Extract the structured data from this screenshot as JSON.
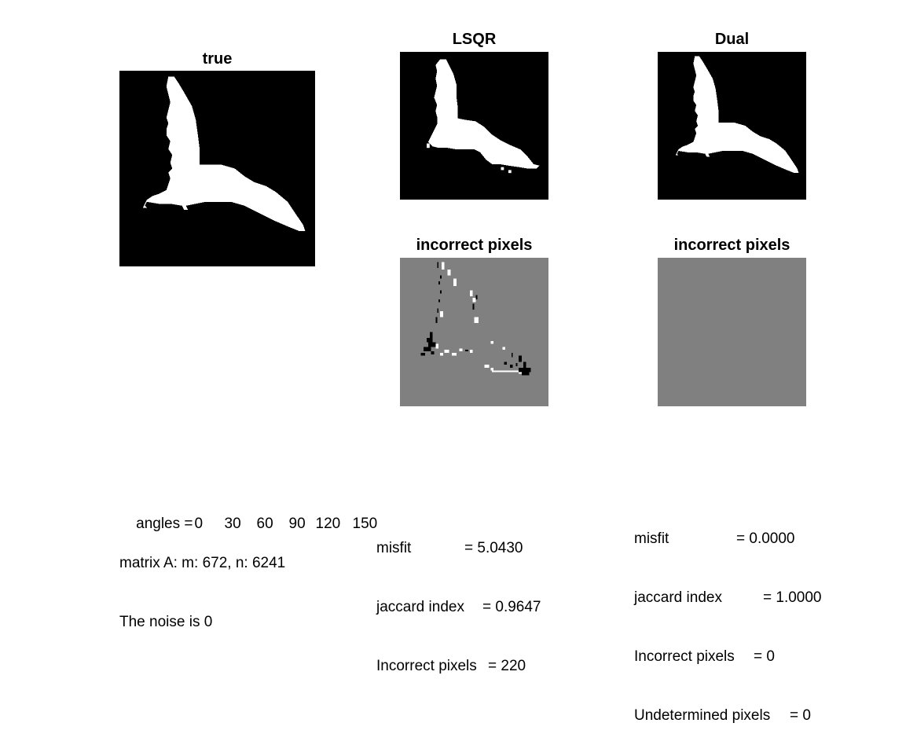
{
  "colors": {
    "background": "#000000",
    "shape": "#ffffff",
    "neutral": "#808080"
  },
  "panels": {
    "true": {
      "title": "true"
    },
    "lsqr": {
      "title": "LSQR"
    },
    "dual": {
      "title": "Dual"
    },
    "lsqr_diff": {
      "title": "incorrect pixels"
    },
    "dual_diff": {
      "title": "incorrect pixels"
    }
  },
  "info": {
    "angles_label": "angles =",
    "angles": [
      "0",
      "30",
      "60",
      "90",
      "120",
      "150"
    ],
    "matrix": "matrix A: m: 672, n: 6241",
    "noise": "The noise is 0"
  },
  "lsqr_stats": [
    {
      "label": "misfit",
      "value": "= 5.0430"
    },
    {
      "label": "jaccard index",
      "value": "= 0.9647"
    },
    {
      "label": "Incorrect pixels",
      "value": "= 220"
    }
  ],
  "dual_stats": [
    {
      "label": "misfit",
      "value": "= 0.0000"
    },
    {
      "label": "jaccard index",
      "value": "= 1.0000"
    },
    {
      "label": "Incorrect pixels",
      "value": "= 0"
    },
    {
      "label": "Undetermined pixels",
      "value": "= 0"
    }
  ]
}
